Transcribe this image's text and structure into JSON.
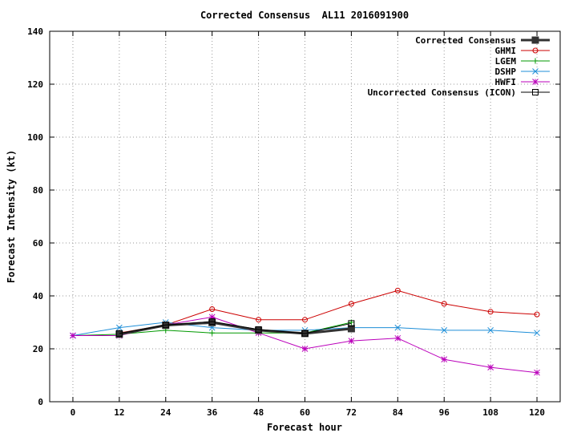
{
  "chart_data": {
    "type": "line",
    "title": "Corrected Consensus  AL11 2016091900",
    "xlabel": "Forecast hour",
    "ylabel": "Forecast Intensity (kt)",
    "xlim": [
      -6,
      126
    ],
    "ylim": [
      0,
      140
    ],
    "xticks": [
      0,
      12,
      24,
      36,
      48,
      60,
      72,
      84,
      96,
      108,
      120
    ],
    "yticks": [
      0,
      20,
      40,
      60,
      80,
      100,
      120,
      140
    ],
    "xtick_labels": [
      "0",
      "12",
      "24",
      "36",
      "48",
      "60",
      "72",
      "84",
      "96",
      "108",
      "120"
    ],
    "ytick_labels": [
      "0",
      "20",
      "40",
      "60",
      "80",
      "100",
      "120",
      "140"
    ],
    "grid": true,
    "legend_position": "top-right",
    "series": [
      {
        "name": "Corrected Consensus",
        "color": "#333333",
        "marker": "filled-square",
        "line_weight": "thick",
        "x": [
          12,
          24,
          36,
          48,
          60,
          72
        ],
        "values": [
          25.5,
          28.9,
          29.9,
          27.0,
          25.8,
          27.6
        ]
      },
      {
        "name": "GHMI",
        "color": "#cc0000",
        "marker": "circle",
        "line_weight": "thin",
        "x": [
          12,
          24,
          36,
          48,
          60,
          72,
          84,
          96,
          108,
          120
        ],
        "values": [
          26,
          29,
          35,
          31,
          31,
          37,
          42,
          37,
          34,
          33
        ]
      },
      {
        "name": "LGEM",
        "color": "#009900",
        "marker": "plus",
        "line_weight": "thin",
        "x": [
          0,
          12,
          24,
          36,
          48,
          60,
          72
        ],
        "values": [
          25,
          25.5,
          27,
          26,
          26,
          26,
          30
        ]
      },
      {
        "name": "DSHP",
        "color": "#1f8fd8",
        "marker": "cross",
        "line_weight": "thin",
        "x": [
          0,
          12,
          24,
          36,
          48,
          60,
          72,
          84,
          96,
          108,
          120
        ],
        "values": [
          25,
          28,
          30,
          28,
          27,
          27,
          28,
          28,
          27,
          27,
          26
        ]
      },
      {
        "name": "HWFI",
        "color": "#bb00bb",
        "marker": "star",
        "line_weight": "thin",
        "x": [
          0,
          12,
          24,
          36,
          48,
          60,
          72,
          84,
          96,
          108,
          120
        ],
        "values": [
          25,
          25,
          29,
          32,
          26,
          20,
          23,
          24,
          16,
          13,
          11
        ]
      },
      {
        "name": "Uncorrected Consensus (ICON)",
        "color": "#000000",
        "marker": "open-square",
        "line_weight": "thin",
        "x": [
          12,
          24,
          36,
          48,
          60,
          72
        ],
        "values": [
          25.8,
          29.0,
          30.3,
          27.3,
          25.8,
          29.6
        ]
      }
    ]
  }
}
